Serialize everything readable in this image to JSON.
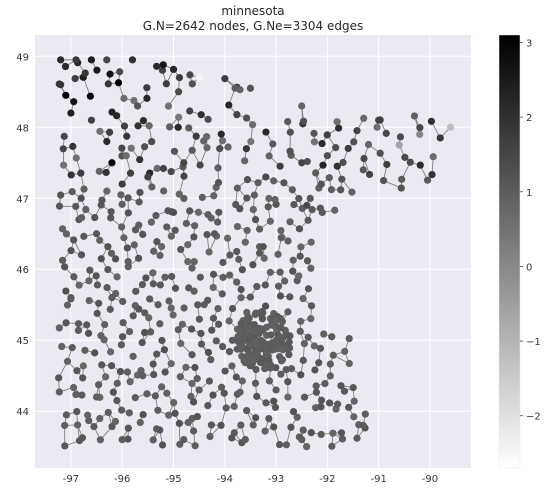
{
  "chart_data": {
    "type": "scatter",
    "title": "minnesota",
    "subtitle": "G.N=2642 nodes, G.Ne=3304 edges",
    "xlabel": "",
    "ylabel": "",
    "xlim": [
      -97.7,
      -89.2
    ],
    "ylim": [
      43.2,
      49.3
    ],
    "x_ticks": [
      "-97",
      "-96",
      "-95",
      "-94",
      "-93",
      "-92",
      "-91",
      "-90"
    ],
    "x_tick_values": [
      -97,
      -96,
      -95,
      -94,
      -93,
      -92,
      -91,
      -90
    ],
    "y_ticks": [
      "44",
      "45",
      "46",
      "47",
      "48",
      "49"
    ],
    "y_tick_values": [
      44,
      45,
      46,
      47,
      48,
      49
    ],
    "grid": true,
    "background": "#eaeaf2",
    "edge_color": "#808080",
    "colorbar": {
      "range": [
        -2.7,
        3.1
      ],
      "ticks": [
        "3",
        "2",
        "1",
        "0",
        "−1",
        "−2"
      ],
      "tick_values": [
        3,
        2,
        1,
        0,
        -1,
        -2
      ],
      "colormap": "gray_r"
    },
    "series": [
      {
        "points": [
          {
            "x": -97.2,
            "y": 48.95,
            "v": 2.2
          },
          {
            "x": -96.9,
            "y": 48.95,
            "v": 1.8
          },
          {
            "x": -96.6,
            "y": 48.95,
            "v": 2.4
          },
          {
            "x": -96.3,
            "y": 48.95,
            "v": 1.5
          },
          {
            "x": -95.8,
            "y": 48.95,
            "v": 2.0
          },
          {
            "x": -95.2,
            "y": 48.88,
            "v": 2.6
          },
          {
            "x": -94.5,
            "y": 48.7,
            "v": -2.5
          },
          {
            "x": -97.1,
            "y": 48.45,
            "v": 3.0
          },
          {
            "x": -97.2,
            "y": 48.6,
            "v": 1.9
          },
          {
            "x": -97.0,
            "y": 48.2,
            "v": 2.4
          },
          {
            "x": -96.6,
            "y": 48.1,
            "v": 1.6
          },
          {
            "x": -96.2,
            "y": 47.5,
            "v": 2.9
          },
          {
            "x": -96.3,
            "y": 47.8,
            "v": 2.1
          },
          {
            "x": -95.7,
            "y": 48.3,
            "v": 1.2
          },
          {
            "x": -94.9,
            "y": 48.5,
            "v": 1.4
          },
          {
            "x": -93.8,
            "y": 48.55,
            "v": 1.0
          },
          {
            "x": -93.5,
            "y": 48.55,
            "v": 1.2
          },
          {
            "x": -92.5,
            "y": 48.3,
            "v": 0.8
          },
          {
            "x": -91.0,
            "y": 48.1,
            "v": 1.6
          },
          {
            "x": -90.2,
            "y": 47.9,
            "v": 0.0
          },
          {
            "x": -89.8,
            "y": 47.85,
            "v": 1.8
          },
          {
            "x": -89.6,
            "y": 48.0,
            "v": -1.2
          },
          {
            "x": -90.6,
            "y": 47.75,
            "v": -0.6
          },
          {
            "x": -91.3,
            "y": 47.4,
            "v": 1.1
          },
          {
            "x": -92.0,
            "y": 47.6,
            "v": 1.3
          },
          {
            "x": -92.5,
            "y": 47.5,
            "v": 1.5
          },
          {
            "x": -93.2,
            "y": 47.3,
            "v": 1.4
          },
          {
            "x": -94.1,
            "y": 47.7,
            "v": 1.3
          },
          {
            "x": -94.8,
            "y": 47.5,
            "v": 1.5
          },
          {
            "x": -95.5,
            "y": 47.3,
            "v": 1.6
          },
          {
            "x": -96.0,
            "y": 47.2,
            "v": 1.7
          },
          {
            "x": -96.8,
            "y": 47.0,
            "v": 1.3
          },
          {
            "x": -96.5,
            "y": 46.5,
            "v": 1.1
          },
          {
            "x": -95.9,
            "y": 46.3,
            "v": 1.2
          },
          {
            "x": -95.0,
            "y": 46.8,
            "v": 1.3
          },
          {
            "x": -94.2,
            "y": 46.5,
            "v": 1.1
          },
          {
            "x": -93.4,
            "y": 46.7,
            "v": 1.2
          },
          {
            "x": -92.4,
            "y": 46.9,
            "v": 1.4
          },
          {
            "x": -92.1,
            "y": 46.8,
            "v": 1.0
          },
          {
            "x": -93.9,
            "y": 46.2,
            "v": 1.0
          },
          {
            "x": -97.0,
            "y": 45.6,
            "v": 1.0
          },
          {
            "x": -96.2,
            "y": 45.6,
            "v": 1.0
          },
          {
            "x": -95.3,
            "y": 45.5,
            "v": 1.0
          },
          {
            "x": -94.4,
            "y": 45.5,
            "v": 1.0
          },
          {
            "x": -93.3,
            "y": 45.0,
            "v": 1.0
          },
          {
            "x": -93.1,
            "y": 44.9,
            "v": 1.0
          },
          {
            "x": -92.7,
            "y": 44.6,
            "v": 1.0
          },
          {
            "x": -91.8,
            "y": 44.1,
            "v": 1.0
          },
          {
            "x": -91.3,
            "y": 43.8,
            "v": 1.0
          },
          {
            "x": -92.5,
            "y": 43.6,
            "v": 1.0
          },
          {
            "x": -93.6,
            "y": 43.6,
            "v": 1.0
          },
          {
            "x": -94.8,
            "y": 43.6,
            "v": 1.0
          },
          {
            "x": -96.0,
            "y": 43.6,
            "v": 1.0
          },
          {
            "x": -96.5,
            "y": 44.2,
            "v": 1.0
          },
          {
            "x": -95.6,
            "y": 44.5,
            "v": 1.0
          },
          {
            "x": -94.5,
            "y": 44.3,
            "v": 1.0
          },
          {
            "x": -93.0,
            "y": 44.3,
            "v": 1.0
          }
        ]
      }
    ]
  }
}
